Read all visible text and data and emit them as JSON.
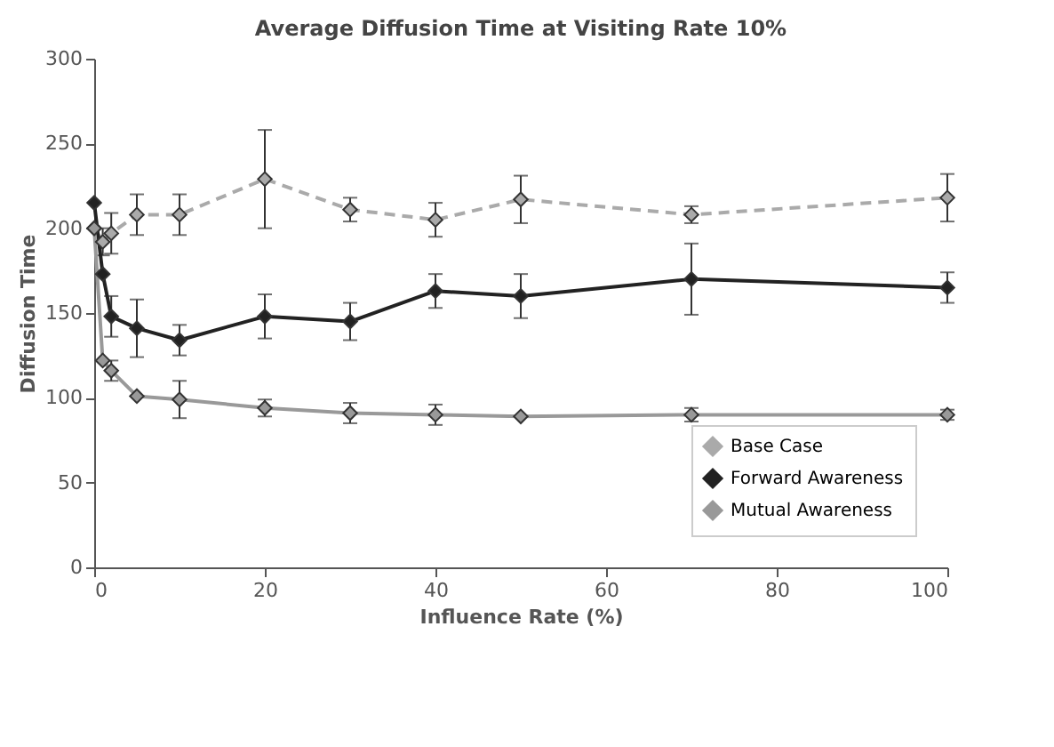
{
  "chart_data": {
    "type": "line",
    "title": "Average Diffusion Time at Visiting Rate 10%",
    "xlabel": "Influence Rate (%)",
    "ylabel": "Diffusion Time",
    "x": [
      0,
      1,
      2,
      5,
      10,
      20,
      30,
      40,
      50,
      70,
      100
    ],
    "xlim": [
      0,
      100
    ],
    "xticks": [
      0,
      20,
      40,
      60,
      80,
      100
    ],
    "ylim": [
      0,
      300
    ],
    "yticks": [
      0,
      50,
      100,
      150,
      200,
      250,
      300
    ],
    "grid": false,
    "legend": "bottom right",
    "marker": "diamond",
    "series": [
      {
        "name": "Base Case",
        "color": "#aaaaaa",
        "line_style": "dashed",
        "values": [
          200,
          192,
          197,
          208,
          208,
          229,
          211,
          205,
          217,
          208,
          218
        ],
        "errors": [
          null,
          8,
          12,
          12,
          12,
          29,
          7,
          10,
          14,
          5,
          14
        ]
      },
      {
        "name": "Forward Awareness",
        "color": "#222222",
        "line_style": "solid",
        "values": [
          215,
          173,
          148,
          141,
          134,
          148,
          145,
          163,
          160,
          170,
          165
        ],
        "errors": [
          null,
          null,
          12,
          17,
          9,
          13,
          11,
          10,
          13,
          21,
          9
        ]
      },
      {
        "name": "Mutual Awareness",
        "color": "#999999",
        "line_style": "solid",
        "values": [
          200,
          122,
          116,
          101,
          99,
          94,
          91,
          90,
          89,
          90,
          90
        ],
        "errors": [
          null,
          null,
          6,
          null,
          11,
          5,
          6,
          6,
          null,
          4,
          3
        ]
      }
    ]
  }
}
